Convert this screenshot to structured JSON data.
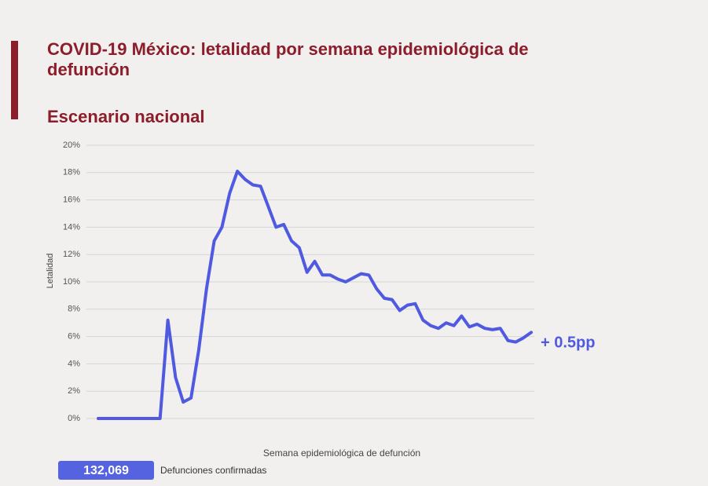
{
  "chart_data": {
    "type": "line",
    "title": "COVID-19 México: letalidad por semana epidemiológica de defunción",
    "subtitle": "Escenario nacional",
    "y_label": "Letalidad",
    "x_label": "Semana epidemiológica de defunción",
    "annotation": "+ 0.5pp",
    "total_deaths": "132,069",
    "total_deaths_label": "Defunciones confirmadas",
    "categories": [
      null,
      null,
      null,
      null,
      null,
      null,
      null,
      null,
      null,
      null,
      null,
      null,
      null,
      null,
      null,
      null,
      null,
      null,
      null,
      null,
      null,
      null,
      null,
      null,
      null,
      null,
      null,
      null,
      null,
      null,
      null,
      null,
      null,
      null,
      null,
      null,
      null,
      null,
      null,
      null,
      null,
      null,
      null,
      null,
      null,
      null,
      null,
      null,
      null,
      null,
      null,
      null,
      null,
      null,
      null,
      null,
      null
    ],
    "series": [
      {
        "name": "Letalidad",
        "color": "#4f5ae0",
        "values": [
          0,
          0,
          0,
          0,
          0,
          0,
          0,
          0,
          0,
          7.2,
          3,
          1.2,
          1.5,
          5,
          9.5,
          13,
          14,
          16.5,
          18.1,
          17.5,
          17.1,
          17,
          15.5,
          14,
          14.2,
          13,
          12.5,
          10.7,
          11.5,
          10.5,
          10.5,
          10.2,
          10,
          10.3,
          10.6,
          10.5,
          9.5,
          8.8,
          8.7,
          7.9,
          8.3,
          8.4,
          7.2,
          6.8,
          6.6,
          7,
          6.8,
          7.5,
          6.7,
          6.9,
          6.6,
          6.5,
          6.6,
          5.7,
          5.6,
          5.9,
          6.3
        ]
      }
    ],
    "ylim": [
      0,
      20
    ],
    "yticks": [
      {
        "value": 0,
        "label": "0%"
      },
      {
        "value": 2,
        "label": "2%"
      },
      {
        "value": 4,
        "label": "4%"
      },
      {
        "value": 6,
        "label": "6%"
      },
      {
        "value": 8,
        "label": "8%"
      },
      {
        "value": 10,
        "label": "10%"
      },
      {
        "value": 12,
        "label": "12%"
      },
      {
        "value": 14,
        "label": "14%"
      },
      {
        "value": 16,
        "label": "16%"
      },
      {
        "value": 18,
        "label": "18%"
      },
      {
        "value": 20,
        "label": "20%"
      }
    ],
    "grid": true
  }
}
